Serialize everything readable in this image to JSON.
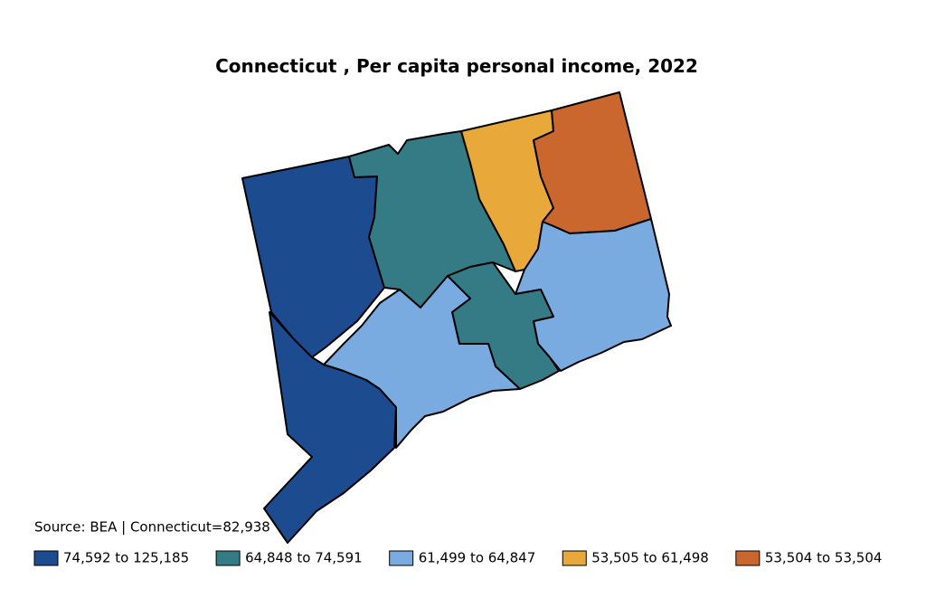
{
  "title": "Connecticut , Per capita personal income, 2022",
  "source": "Source: BEA | Connecticut=82,938",
  "legend": [
    {
      "label": "74,592 to 125,185",
      "color": "#1c4b8f"
    },
    {
      "label": "64,848 to 74,591",
      "color": "#347b86"
    },
    {
      "label": "61,499 to 64,847",
      "color": "#7aabe0"
    },
    {
      "label": "53,505 to 61,498",
      "color": "#e8a93a"
    },
    {
      "label": "53,504 to 53,504",
      "color": "#c9672f"
    }
  ]
}
